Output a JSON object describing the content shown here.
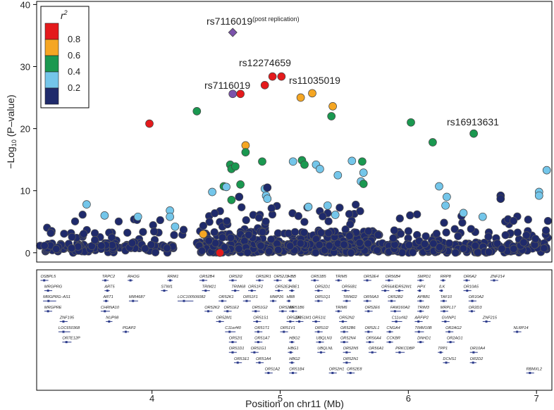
{
  "chart_data": {
    "type": "scatter",
    "title": "",
    "xlabel": "Position on chr11 (Mb)",
    "ylabel_prefix": "−Log",
    "ylabel_sub": "10",
    "ylabel_suffix": " (P–value)",
    "xlim": [
      3.1,
      7.12
    ],
    "ylim": [
      -1.5,
      40.5
    ],
    "xticks": [
      4,
      5,
      6,
      7
    ],
    "yticks": [
      0,
      10,
      20,
      30,
      40
    ],
    "legend": {
      "title": "r",
      "title_sup": "2",
      "position": "top-left",
      "bins": [
        {
          "label": "0.8",
          "color": "#e41a1c"
        },
        {
          "label": "0.6",
          "color": "#f5a623"
        },
        {
          "label": "0.4",
          "color": "#1a9850"
        },
        {
          "label": "0.2",
          "color": "#74c6ea"
        },
        {
          "label": "",
          "color": "#1f2a6b"
        }
      ]
    },
    "colors": {
      "red": "#e41a1c",
      "orange": "#f5a623",
      "green": "#1a9850",
      "light_blue": "#74c6ea",
      "navy": "#1f2a6b",
      "purple": "#7b52ab",
      "outline": "#555555"
    },
    "annotations": [
      {
        "text": "rs7116019",
        "sup": "(post replication)",
        "x": 4.63,
        "y": 37.4
      },
      {
        "text": "rs12274659",
        "x": 4.9,
        "y": 29.7
      },
      {
        "text": "rs11035019",
        "x": 5.13,
        "y": 26.9
      },
      {
        "text": "rs7116019",
        "x": 4.41,
        "y": 26.6
      },
      {
        "text": "rs16913631",
        "x": 6.46,
        "y": 20.6
      }
    ],
    "lead_snp_replication": {
      "x": 4.63,
      "y": 35.5
    },
    "highlight_points": [
      {
        "x": 3.98,
        "y": 20.8,
        "r2": "red"
      },
      {
        "x": 4.35,
        "y": 22.8,
        "r2": "green"
      },
      {
        "x": 4.63,
        "y": 25.6,
        "r2": "purple"
      },
      {
        "x": 4.69,
        "y": 25.6,
        "r2": "red"
      },
      {
        "x": 4.88,
        "y": 27.0,
        "r2": "red"
      },
      {
        "x": 4.94,
        "y": 28.4,
        "r2": "red"
      },
      {
        "x": 5.01,
        "y": 28.4,
        "r2": "red"
      },
      {
        "x": 5.16,
        "y": 25.0,
        "r2": "orange"
      },
      {
        "x": 5.25,
        "y": 25.7,
        "r2": "orange"
      },
      {
        "x": 5.41,
        "y": 23.6,
        "r2": "orange"
      },
      {
        "x": 5.4,
        "y": 22.0,
        "r2": "green"
      },
      {
        "x": 6.02,
        "y": 21.0,
        "r2": "green"
      },
      {
        "x": 6.51,
        "y": 19.2,
        "r2": "green"
      },
      {
        "x": 6.19,
        "y": 17.8,
        "r2": "green"
      },
      {
        "x": 4.73,
        "y": 17.3,
        "r2": "orange"
      },
      {
        "x": 4.73,
        "y": 16.2,
        "r2": "green"
      },
      {
        "x": 4.61,
        "y": 14.2,
        "r2": "green"
      },
      {
        "x": 4.62,
        "y": 13.5,
        "r2": "green"
      },
      {
        "x": 4.65,
        "y": 13.9,
        "r2": "green"
      },
      {
        "x": 4.86,
        "y": 14.7,
        "r2": "green"
      },
      {
        "x": 5.17,
        "y": 14.9,
        "r2": "green"
      },
      {
        "x": 5.19,
        "y": 14.2,
        "r2": "green"
      },
      {
        "x": 5.28,
        "y": 14.2,
        "r2": "light_blue"
      },
      {
        "x": 5.1,
        "y": 14.7,
        "r2": "light_blue"
      },
      {
        "x": 5.31,
        "y": 13.5,
        "r2": "light_blue"
      },
      {
        "x": 5.56,
        "y": 14.8,
        "r2": "light_blue"
      },
      {
        "x": 5.64,
        "y": 14.7,
        "r2": "green"
      },
      {
        "x": 5.65,
        "y": 12.9,
        "r2": "light_blue"
      },
      {
        "x": 5.63,
        "y": 11.5,
        "r2": "light_blue"
      },
      {
        "x": 5.45,
        "y": 12.5,
        "r2": "light_blue"
      },
      {
        "x": 5.65,
        "y": 11.1,
        "r2": "green"
      },
      {
        "x": 4.56,
        "y": 10.7,
        "r2": "green"
      },
      {
        "x": 4.69,
        "y": 11.0,
        "r2": "green"
      },
      {
        "x": 4.58,
        "y": 10.6,
        "r2": "light_blue"
      },
      {
        "x": 4.47,
        "y": 9.8,
        "r2": "light_blue"
      },
      {
        "x": 4.88,
        "y": 10.3,
        "r2": "light_blue"
      },
      {
        "x": 4.89,
        "y": 9.2,
        "r2": "light_blue"
      },
      {
        "x": 4.9,
        "y": 8.7,
        "r2": "light_blue"
      },
      {
        "x": 4.62,
        "y": 8.5,
        "r2": "green"
      },
      {
        "x": 3.49,
        "y": 7.8,
        "r2": "light_blue"
      },
      {
        "x": 3.63,
        "y": 6.0,
        "r2": "light_blue"
      },
      {
        "x": 3.89,
        "y": 5.8,
        "r2": "light_blue"
      },
      {
        "x": 4.14,
        "y": 6.8,
        "r2": "light_blue"
      },
      {
        "x": 4.14,
        "y": 5.8,
        "r2": "light_blue"
      },
      {
        "x": 4.18,
        "y": 4.2,
        "r2": "light_blue"
      },
      {
        "x": 5.22,
        "y": 7.4,
        "r2": "light_blue"
      },
      {
        "x": 5.37,
        "y": 7.6,
        "r2": "light_blue"
      },
      {
        "x": 5.43,
        "y": 6.1,
        "r2": "light_blue"
      },
      {
        "x": 6.24,
        "y": 10.7,
        "r2": "light_blue"
      },
      {
        "x": 6.3,
        "y": 9.0,
        "r2": "light_blue"
      },
      {
        "x": 6.29,
        "y": 7.6,
        "r2": "light_blue"
      },
      {
        "x": 6.43,
        "y": 6.4,
        "r2": "light_blue"
      },
      {
        "x": 6.58,
        "y": 5.8,
        "r2": "light_blue"
      },
      {
        "x": 7.02,
        "y": 9.8,
        "r2": "light_blue"
      },
      {
        "x": 7.02,
        "y": 9.2,
        "r2": "light_blue"
      },
      {
        "x": 7.08,
        "y": 13.3,
        "r2": "light_blue"
      },
      {
        "x": 4.4,
        "y": 3.0,
        "r2": "orange"
      },
      {
        "x": 4.53,
        "y": 0.0,
        "r2": "red"
      },
      {
        "x": 4.9,
        "y": 10.5,
        "r2": "navy"
      },
      {
        "x": 4.68,
        "y": 9.0,
        "r2": "navy"
      },
      {
        "x": 6.72,
        "y": 9.2,
        "r2": "navy"
      },
      {
        "x": 6.72,
        "y": 8.7,
        "r2": "navy"
      }
    ],
    "background_points_note": "dense field of SNPs with r2 < 0.2 spanning 3.1–7.1 Mb at −log10 P between 0 and 8",
    "genes": [
      {
        "name": "OSBPL5",
        "x": 3.13,
        "row": 0
      },
      {
        "name": "MRGPRG",
        "x": 3.16,
        "row": 1
      },
      {
        "name": "MRGPRG–AS1",
        "x": 3.15,
        "row": 2
      },
      {
        "name": "MRGPRE",
        "x": 3.16,
        "row": 3
      },
      {
        "name": "ZNF195",
        "x": 3.28,
        "row": 4
      },
      {
        "name": "LOC650368",
        "x": 3.27,
        "row": 5
      },
      {
        "name": "OR7E12P",
        "x": 3.3,
        "row": 6
      },
      {
        "name": "TRPC2",
        "x": 3.61,
        "row": 0
      },
      {
        "name": "ART5",
        "x": 3.63,
        "row": 1
      },
      {
        "name": "ART1",
        "x": 3.62,
        "row": 2
      },
      {
        "name": "CHRNA10",
        "x": 3.6,
        "row": 3
      },
      {
        "name": "NUP98",
        "x": 3.64,
        "row": 4
      },
      {
        "name": "PGAP2",
        "x": 3.77,
        "row": 5
      },
      {
        "name": "RHOG",
        "x": 3.81,
        "row": 0
      },
      {
        "name": "MIR4687",
        "x": 3.82,
        "row": 2
      },
      {
        "name": "STIM1",
        "x": 4.07,
        "row": 1
      },
      {
        "name": "RRM1",
        "x": 4.12,
        "row": 0
      },
      {
        "name": "LOC100506082",
        "x": 4.2,
        "row": 2
      },
      {
        "name": "OR52B4",
        "x": 4.37,
        "row": 0
      },
      {
        "name": "TRIM21",
        "x": 4.39,
        "row": 1
      },
      {
        "name": "OR52K2",
        "x": 4.41,
        "row": 3
      },
      {
        "name": "OR52I2",
        "x": 4.6,
        "row": 0
      },
      {
        "name": "TRIM68",
        "x": 4.62,
        "row": 1
      },
      {
        "name": "OR52K1",
        "x": 4.52,
        "row": 2
      },
      {
        "name": "OR51E2",
        "x": 4.56,
        "row": 3
      },
      {
        "name": "OR52M1",
        "x": 4.5,
        "row": 4
      },
      {
        "name": "C11orf40",
        "x": 4.57,
        "row": 5
      },
      {
        "name": "OR52I1",
        "x": 4.6,
        "row": 6
      },
      {
        "name": "OR51D1",
        "x": 4.6,
        "row": 7
      },
      {
        "name": "OR51E1",
        "x": 4.64,
        "row": 8
      },
      {
        "name": "OR52R1",
        "x": 4.81,
        "row": 0
      },
      {
        "name": "OR51F2",
        "x": 4.75,
        "row": 1
      },
      {
        "name": "OR51F1",
        "x": 4.71,
        "row": 2
      },
      {
        "name": "OR51G2",
        "x": 4.78,
        "row": 3
      },
      {
        "name": "OR51S1",
        "x": 4.79,
        "row": 4
      },
      {
        "name": "OR51T1",
        "x": 4.8,
        "row": 5
      },
      {
        "name": "OR51A7",
        "x": 4.8,
        "row": 6
      },
      {
        "name": "OR51G1",
        "x": 4.77,
        "row": 7
      },
      {
        "name": "OR51A4",
        "x": 4.81,
        "row": 8
      },
      {
        "name": "OR51A2",
        "x": 4.88,
        "row": 9
      },
      {
        "name": "OR52J3",
        "x": 4.95,
        "row": 0
      },
      {
        "name": "OR52E2",
        "x": 4.96,
        "row": 1
      },
      {
        "name": "MMP26",
        "x": 4.92,
        "row": 2
      },
      {
        "name": "OR52A5",
        "x": 4.99,
        "row": 3
      },
      {
        "name": "OR52A1",
        "x": 5.05,
        "row": 4
      },
      {
        "name": "OR51V1",
        "x": 5.0,
        "row": 5
      },
      {
        "name": "HBB",
        "x": 5.06,
        "row": 0
      },
      {
        "name": "HBE1",
        "x": 5.07,
        "row": 1
      },
      {
        "name": "HBB",
        "x": 5.05,
        "row": 2
      },
      {
        "name": "OR51B6",
        "x": 5.07,
        "row": 3
      },
      {
        "name": "OR51M1",
        "x": 5.12,
        "row": 4
      },
      {
        "name": "HBG2",
        "x": 5.07,
        "row": 6
      },
      {
        "name": "HBG1",
        "x": 5.06,
        "row": 7
      },
      {
        "name": "HBG2",
        "x": 5.07,
        "row": 8
      },
      {
        "name": "OR51B4",
        "x": 5.07,
        "row": 9
      },
      {
        "name": "OR51B5",
        "x": 5.24,
        "row": 0
      },
      {
        "name": "OR52D1",
        "x": 5.27,
        "row": 1
      },
      {
        "name": "OR51Q1",
        "x": 5.27,
        "row": 2
      },
      {
        "name": "OR51I1",
        "x": 5.25,
        "row": 4
      },
      {
        "name": "OR51I2",
        "x": 5.27,
        "row": 5
      },
      {
        "name": "UBQLN3",
        "x": 5.28,
        "row": 6
      },
      {
        "name": "UBQLNL",
        "x": 5.29,
        "row": 7
      },
      {
        "name": "OR52H1",
        "x": 5.38,
        "row": 9
      },
      {
        "name": "TRIM5",
        "x": 5.43,
        "row": 0
      },
      {
        "name": "OR56B1",
        "x": 5.48,
        "row": 1
      },
      {
        "name": "TRIM22",
        "x": 5.49,
        "row": 2
      },
      {
        "name": "TRIM6",
        "x": 5.43,
        "row": 3
      },
      {
        "name": "OR52N2",
        "x": 5.46,
        "row": 4
      },
      {
        "name": "OR52B6",
        "x": 5.47,
        "row": 5
      },
      {
        "name": "OR52N4",
        "x": 5.47,
        "row": 6
      },
      {
        "name": "OR52N5",
        "x": 5.49,
        "row": 7
      },
      {
        "name": "OR52N1",
        "x": 5.49,
        "row": 8
      },
      {
        "name": "OR52E8",
        "x": 5.52,
        "row": 9
      },
      {
        "name": "OR52E4",
        "x": 5.65,
        "row": 0
      },
      {
        "name": "OR56A3",
        "x": 5.65,
        "row": 2
      },
      {
        "name": "OR52L1",
        "x": 5.66,
        "row": 5
      },
      {
        "name": "OR56A4",
        "x": 5.67,
        "row": 6
      },
      {
        "name": "OR56A1",
        "x": 5.69,
        "row": 7
      },
      {
        "name": "OR52E6",
        "x": 5.66,
        "row": 3
      },
      {
        "name": "OR56A5",
        "x": 5.79,
        "row": 1
      },
      {
        "name": "OR56B4",
        "x": 5.82,
        "row": 0
      },
      {
        "name": "OR52B2",
        "x": 5.84,
        "row": 2
      },
      {
        "name": "OR52W1",
        "x": 5.9,
        "row": 1
      },
      {
        "name": "FAM160A2",
        "x": 5.86,
        "row": 3
      },
      {
        "name": "C11orf42",
        "x": 5.87,
        "row": 4
      },
      {
        "name": "CNGA4",
        "x": 5.83,
        "row": 5
      },
      {
        "name": "CCKBR",
        "x": 5.83,
        "row": 6
      },
      {
        "name": "PRKCDBP",
        "x": 5.9,
        "row": 7
      },
      {
        "name": "SMPD1",
        "x": 6.07,
        "row": 0
      },
      {
        "name": "HPX",
        "x": 6.07,
        "row": 1
      },
      {
        "name": "APBB1",
        "x": 6.07,
        "row": 2
      },
      {
        "name": "TRIM3",
        "x": 6.07,
        "row": 3
      },
      {
        "name": "ARFIP2",
        "x": 6.05,
        "row": 4
      },
      {
        "name": "TIMM10B",
        "x": 6.05,
        "row": 5
      },
      {
        "name": "DNHD1",
        "x": 6.07,
        "row": 6
      },
      {
        "name": "RRP8",
        "x": 6.25,
        "row": 0
      },
      {
        "name": "ILK",
        "x": 6.24,
        "row": 1
      },
      {
        "name": "TAF10",
        "x": 6.25,
        "row": 2
      },
      {
        "name": "MRPL17",
        "x": 6.25,
        "row": 3
      },
      {
        "name": "GVINP1",
        "x": 6.26,
        "row": 4
      },
      {
        "name": "OR2AG2",
        "x": 6.29,
        "row": 5
      },
      {
        "name": "OR2AG1",
        "x": 6.3,
        "row": 6
      },
      {
        "name": "TPP1",
        "x": 6.23,
        "row": 7
      },
      {
        "name": "DCHS1",
        "x": 6.27,
        "row": 8
      },
      {
        "name": "OR6A2",
        "x": 6.43,
        "row": 0
      },
      {
        "name": "OR10A5",
        "x": 6.43,
        "row": 1
      },
      {
        "name": "OR10A2",
        "x": 6.47,
        "row": 2
      },
      {
        "name": "OR2D3",
        "x": 6.47,
        "row": 3
      },
      {
        "name": "ZNF215",
        "x": 6.58,
        "row": 4
      },
      {
        "name": "OR10A4",
        "x": 6.48,
        "row": 7
      },
      {
        "name": "OR2D2",
        "x": 6.48,
        "row": 8
      },
      {
        "name": "ZNF214",
        "x": 6.64,
        "row": 0
      },
      {
        "name": "NLRP14",
        "x": 6.82,
        "row": 5
      },
      {
        "name": "RBMXL2",
        "x": 6.92,
        "row": 9
      }
    ]
  }
}
